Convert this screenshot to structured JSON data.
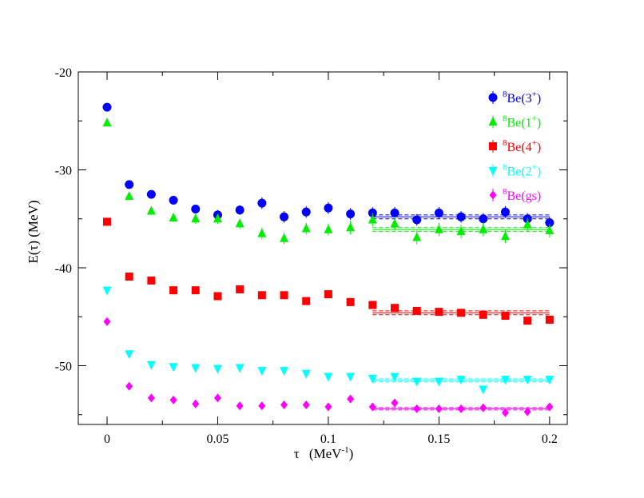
{
  "chart_data": {
    "type": "scatter",
    "title": "",
    "xlabel": "τ  (MeV-1)",
    "xlabel_parts": {
      "symbol": "τ",
      "unit": "(MeV",
      "exp": "-1",
      "close": ")"
    },
    "ylabel": "E(τ)  (MeV)",
    "xlim": [
      -0.013,
      0.208
    ],
    "ylim": [
      -56,
      -20
    ],
    "xticks": [
      0,
      0.05,
      0.1,
      0.15,
      0.2
    ],
    "xtick_labels": [
      "0",
      "0.05",
      "0.1",
      "0.15",
      "0.2"
    ],
    "yticks": [
      -50,
      -40,
      -30,
      -20
    ],
    "ytick_labels": [
      "-50",
      "-40",
      "-30",
      "-20"
    ],
    "grid": false,
    "legend_position": "top-right",
    "x": [
      0,
      0.01,
      0.02,
      0.03,
      0.04,
      0.05,
      0.06,
      0.07,
      0.08,
      0.09,
      0.1,
      0.11,
      0.12,
      0.13,
      0.14,
      0.15,
      0.16,
      0.17,
      0.18,
      0.19,
      0.2
    ],
    "series": [
      {
        "name": "8Be(3+)",
        "legend": {
          "pre": "8",
          "base": "Be(3",
          "sup": "+",
          "post": ")"
        },
        "color": "#0000ff",
        "marker": "circle",
        "values": [
          -23.6,
          -31.5,
          -32.5,
          -33.1,
          -34.0,
          -34.6,
          -34.1,
          -33.4,
          -34.8,
          -34.3,
          -33.9,
          -34.5,
          -34.4,
          -34.4,
          -35.1,
          -34.4,
          -34.8,
          -35.0,
          -34.3,
          -35.0,
          -35.4
        ],
        "errors": [
          0.3,
          0.3,
          0.3,
          0.4,
          0.4,
          0.5,
          0.5,
          0.6,
          0.6,
          0.6,
          0.6,
          0.6,
          0.6,
          0.6,
          0.6,
          0.6,
          0.6,
          0.6,
          0.6,
          0.6,
          0.6
        ],
        "fit": {
          "x": [
            0.12,
            0.2
          ],
          "value": -34.8,
          "band": 0.2
        }
      },
      {
        "name": "8Be(1+)",
        "legend": {
          "pre": "8",
          "base": "Be(1",
          "sup": "+",
          "post": ")"
        },
        "color": "#00ee00",
        "marker": "triangle-up",
        "values": [
          -25.2,
          -32.7,
          -34.2,
          -34.9,
          -35.0,
          -35.0,
          -35.5,
          -36.5,
          -37.0,
          -36.0,
          -36.1,
          -35.9,
          -35.1,
          -35.5,
          -36.9,
          -36.1,
          -36.3,
          -36.1,
          -36.8,
          -35.6,
          -36.2
        ],
        "errors": [
          0.3,
          0.3,
          0.4,
          0.4,
          0.5,
          0.5,
          0.5,
          0.6,
          0.6,
          0.6,
          0.6,
          0.7,
          0.7,
          0.7,
          0.7,
          0.7,
          0.7,
          0.7,
          0.7,
          0.7,
          0.7
        ],
        "fit": {
          "x": [
            0.12,
            0.2
          ],
          "value": -36.1,
          "band": 0.2
        }
      },
      {
        "name": "8Be(4+)",
        "legend": {
          "pre": "8",
          "base": "Be(4",
          "sup": "+",
          "post": ")"
        },
        "color": "#ff0000",
        "marker": "square",
        "values": [
          -35.3,
          -40.9,
          -41.3,
          -42.3,
          -42.3,
          -42.9,
          -42.2,
          -42.8,
          -42.8,
          -43.4,
          -42.7,
          -43.5,
          -43.8,
          -44.1,
          -44.4,
          -44.5,
          -44.6,
          -44.8,
          -44.9,
          -45.4,
          -45.3
        ],
        "errors": [
          0.2,
          0.2,
          0.2,
          0.2,
          0.2,
          0.2,
          0.2,
          0.3,
          0.3,
          0.3,
          0.3,
          0.3,
          0.3,
          0.3,
          0.3,
          0.3,
          0.3,
          0.3,
          0.3,
          0.3,
          0.3
        ],
        "fit": {
          "x": [
            0.12,
            0.2
          ],
          "value": -44.6,
          "band": 0.2
        }
      },
      {
        "name": "8Be(2+)",
        "legend": {
          "pre": "8",
          "base": "Be(2",
          "sup": "+",
          "post": ")"
        },
        "color": "#00ffff",
        "marker": "triangle-down",
        "values": [
          -42.3,
          -48.8,
          -49.9,
          -50.1,
          -50.2,
          -50.3,
          -50.2,
          -50.5,
          -50.5,
          -50.8,
          -51.1,
          -51.1,
          -51.3,
          -51.1,
          -51.6,
          -51.6,
          -51.4,
          -52.4,
          -51.4,
          -51.4,
          -51.4
        ],
        "errors": [
          0.2,
          0.2,
          0.2,
          0.2,
          0.2,
          0.2,
          0.2,
          0.2,
          0.2,
          0.2,
          0.2,
          0.2,
          0.2,
          0.2,
          0.2,
          0.2,
          0.2,
          0.2,
          0.2,
          0.2,
          0.2
        ],
        "fit": {
          "x": [
            0.12,
            0.2
          ],
          "value": -51.5,
          "band": 0.15
        }
      },
      {
        "name": "8Be(gs)",
        "legend": {
          "pre": "8",
          "base": "Be(gs)",
          "sup": "",
          "post": ""
        },
        "color": "#ff00ff",
        "marker": "diamond",
        "values": [
          -45.5,
          -52.1,
          -53.3,
          -53.5,
          -53.9,
          -53.3,
          -54.1,
          -54.1,
          -54.0,
          -54.0,
          -54.2,
          -53.4,
          -54.2,
          -53.8,
          -54.4,
          -54.4,
          -54.4,
          -54.3,
          -54.8,
          -54.7,
          -54.2
        ],
        "errors": [
          0.1,
          0.1,
          0.1,
          0.1,
          0.1,
          0.1,
          0.1,
          0.1,
          0.1,
          0.1,
          0.1,
          0.1,
          0.1,
          0.1,
          0.1,
          0.1,
          0.1,
          0.1,
          0.1,
          0.1,
          0.1
        ],
        "fit": {
          "x": [
            0.12,
            0.2
          ],
          "value": -54.4,
          "band": 0.12
        }
      }
    ]
  }
}
